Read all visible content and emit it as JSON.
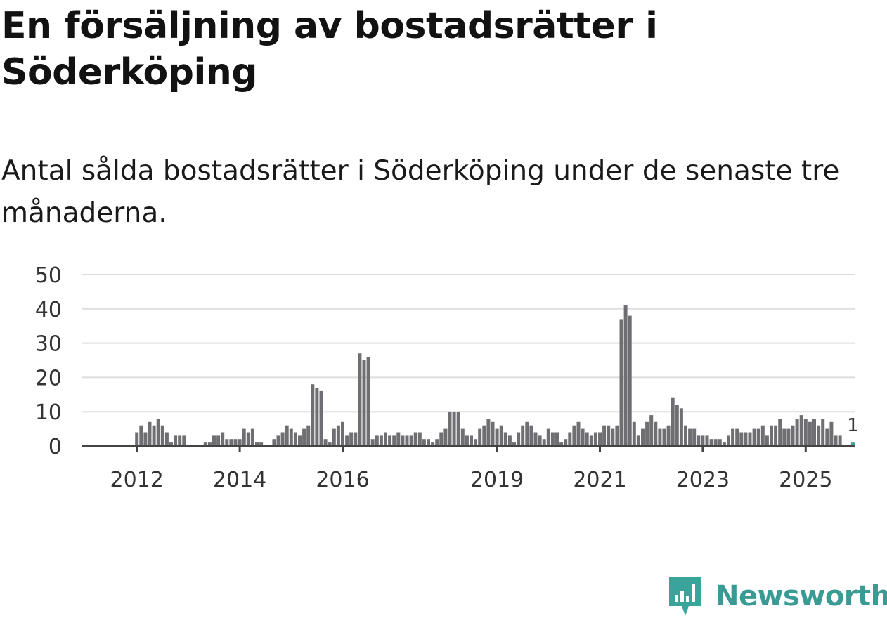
{
  "title": "En försäljning av bostadsrätter i Söderköping",
  "subtitle": "Antal sålda bostadsrätter i Söderköping under de senaste tre månaderna.",
  "brand": {
    "name": "Newsworthy",
    "icon": "newsworthy-logo-icon"
  },
  "colors": {
    "bar": "#6f6f73",
    "highlight": "#3aa39a",
    "brand": "#3a9a94",
    "grid": "#dddddd"
  },
  "chart_data": {
    "type": "bar",
    "title": "En försäljning av bostadsrätter i Söderköping",
    "xlabel": "",
    "ylabel": "",
    "ylim": [
      0,
      50
    ],
    "y_ticks": [
      0,
      10,
      20,
      30,
      40,
      50
    ],
    "start": "2011-01",
    "x_ticks": [
      {
        "label": "2012",
        "index": 12
      },
      {
        "label": "2014",
        "index": 36
      },
      {
        "label": "2016",
        "index": 60
      },
      {
        "label": "2019",
        "index": 96
      },
      {
        "label": "2021",
        "index": 120
      },
      {
        "label": "2023",
        "index": 144
      },
      {
        "label": "2025",
        "index": 168
      }
    ],
    "values": [
      0,
      0,
      0,
      0,
      0,
      0,
      0,
      0,
      0,
      0,
      0,
      0,
      4,
      6,
      4,
      7,
      6,
      8,
      6,
      4,
      1,
      3,
      3,
      3,
      0,
      0,
      0,
      0,
      1,
      1,
      3,
      3,
      4,
      2,
      2,
      2,
      2,
      5,
      4,
      5,
      1,
      1,
      0,
      0,
      2,
      3,
      4,
      6,
      5,
      4,
      3,
      5,
      6,
      18,
      17,
      16,
      2,
      1,
      5,
      6,
      7,
      3,
      4,
      4,
      27,
      25,
      26,
      2,
      3,
      3,
      4,
      3,
      3,
      4,
      3,
      3,
      3,
      4,
      4,
      2,
      2,
      1,
      2,
      4,
      5,
      10,
      10,
      10,
      5,
      3,
      3,
      2,
      5,
      6,
      8,
      7,
      5,
      6,
      4,
      3,
      1,
      4,
      6,
      7,
      6,
      4,
      3,
      2,
      5,
      4,
      4,
      1,
      2,
      4,
      6,
      7,
      5,
      4,
      3,
      4,
      4,
      6,
      6,
      5,
      6,
      37,
      41,
      38,
      7,
      3,
      5,
      7,
      9,
      7,
      5,
      5,
      6,
      14,
      12,
      11,
      6,
      5,
      5,
      3,
      3,
      3,
      2,
      2,
      2,
      1,
      3,
      5,
      5,
      4,
      4,
      4,
      5,
      5,
      6,
      3,
      6,
      6,
      8,
      5,
      5,
      6,
      8,
      9,
      8,
      7,
      8,
      6,
      8,
      5,
      7,
      3,
      3,
      0,
      0,
      1
    ],
    "highlight": {
      "index": 179,
      "value": 1,
      "label": "1"
    }
  }
}
